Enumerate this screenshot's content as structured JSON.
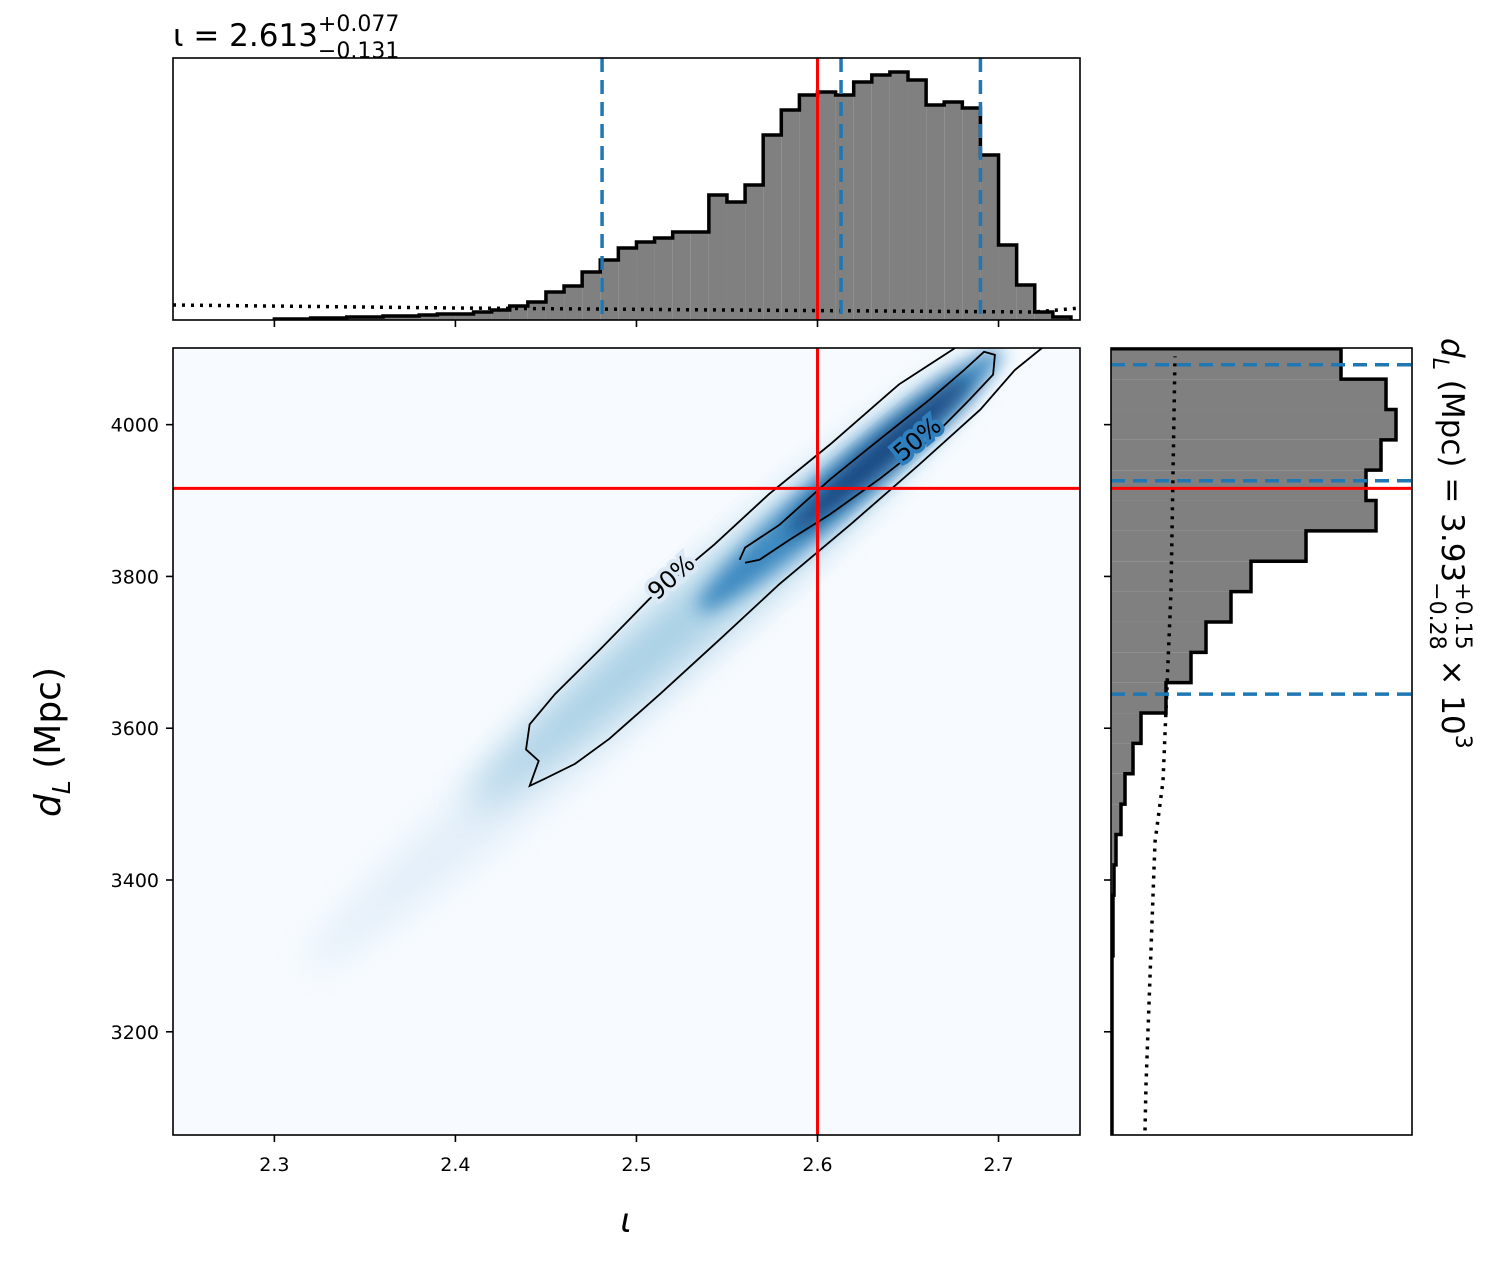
{
  "chart_data": {
    "type": "corner",
    "title": {
      "text": "ι = 2.613",
      "upper": "+0.077",
      "lower": "−0.131"
    },
    "side_title": {
      "text": "d",
      "sub": "L",
      "unit": " (Mpc) = 3.93",
      "upper": "+0.15",
      "lower": "−0.28",
      "tail": " × 10",
      "exp": "3"
    },
    "xlabel": "ι",
    "ylabel": {
      "text": "d",
      "sub": "L",
      "unit": " (Mpc)"
    },
    "xlim": [
      2.244,
      2.745
    ],
    "ylim": [
      3064,
      4101
    ],
    "xticks": [
      2.3,
      2.4,
      2.5,
      2.6,
      2.7
    ],
    "yticks": [
      3200,
      3400,
      3600,
      3800,
      4000
    ],
    "truth": {
      "x": 2.6,
      "y": 3916,
      "color": "#ff0000"
    },
    "quantile_color": "#1f77b4",
    "x_quantiles": [
      2.481,
      2.613,
      2.69
    ],
    "y_quantiles": [
      3645,
      3926,
      4079
    ],
    "x_hist": {
      "color": "#808080",
      "bins": [
        2.3,
        2.31,
        2.32,
        2.33,
        2.34,
        2.35,
        2.36,
        2.37,
        2.38,
        2.39,
        2.4,
        2.41,
        2.42,
        2.43,
        2.44,
        2.45,
        2.46,
        2.47,
        2.48,
        2.49,
        2.5,
        2.51,
        2.52,
        2.53,
        2.54,
        2.55,
        2.56,
        2.57,
        2.58,
        2.59,
        2.6,
        2.61,
        2.62,
        2.63,
        2.64,
        2.65,
        2.66,
        2.67,
        2.68,
        2.69,
        2.7,
        2.71,
        2.72,
        2.73,
        2.74
      ],
      "counts": [
        1,
        1,
        2,
        2,
        3,
        3,
        4,
        4,
        5,
        6,
        6,
        8,
        10,
        14,
        18,
        28,
        34,
        48,
        60,
        72,
        78,
        82,
        88,
        88,
        125,
        118,
        135,
        185,
        210,
        225,
        228,
        225,
        238,
        245,
        248,
        240,
        215,
        218,
        212,
        165,
        75,
        35,
        8,
        3
      ],
      "ylim": [
        0,
        262
      ],
      "prior": {
        "x": [
          2.244,
          2.4,
          2.55,
          2.72,
          2.745
        ],
        "values": [
          15,
          12,
          10,
          8,
          12
        ]
      }
    },
    "y_hist": {
      "color": "#808080",
      "bins": [
        3060,
        3100,
        3140,
        3180,
        3220,
        3260,
        3300,
        3340,
        3380,
        3420,
        3460,
        3500,
        3540,
        3580,
        3620,
        3660,
        3700,
        3740,
        3780,
        3820,
        3860,
        3900,
        3940,
        3980,
        4020,
        4060,
        4100
      ],
      "counts": [
        1,
        1,
        1,
        1,
        1,
        1,
        2,
        2,
        3,
        5,
        10,
        14,
        22,
        30,
        55,
        80,
        95,
        120,
        140,
        195,
        265,
        255,
        270,
        285,
        275,
        230
      ],
      "xlim": [
        0,
        301
      ],
      "prior": {
        "y": [
          3070,
          3130,
          3450,
          3530,
          3780,
          4090
        ],
        "values": [
          34,
          35,
          44,
          52,
          60,
          64
        ]
      }
    },
    "contours": [
      {
        "label": "90%",
        "x": [
          2.676,
          2.645,
          2.607,
          2.573,
          2.543,
          2.507,
          2.48,
          2.455,
          2.441,
          2.439,
          2.446,
          2.441,
          2.449,
          2.466,
          2.485,
          2.513,
          2.546,
          2.579,
          2.618,
          2.656,
          2.69,
          2.709,
          2.724
        ],
        "y": [
          4101,
          4053,
          3974,
          3908,
          3842,
          3770,
          3704,
          3645,
          3605,
          3572,
          3557,
          3524,
          3533,
          3553,
          3586,
          3645,
          3717,
          3790,
          3868,
          3947,
          4020,
          4072,
          4101
        ]
      },
      {
        "label": "50%",
        "x": [
          2.557,
          2.56,
          2.579,
          2.607,
          2.634,
          2.662,
          2.681,
          2.692,
          2.698,
          2.697,
          2.684,
          2.662,
          2.634,
          2.607,
          2.585,
          2.568,
          2.56
        ],
        "y": [
          3822,
          3838,
          3868,
          3928,
          3980,
          4033,
          4072,
          4096,
          4092,
          4066,
          4033,
          3980,
          3928,
          3882,
          3849,
          3822,
          3818
        ]
      }
    ]
  }
}
